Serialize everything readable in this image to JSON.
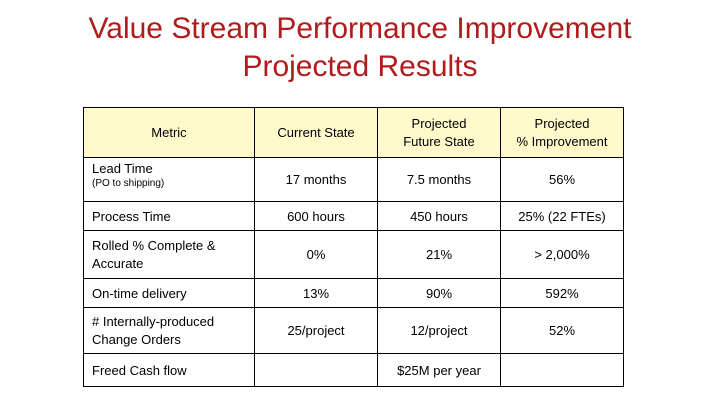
{
  "title": {
    "line1": "Value Stream Performance Improvement",
    "line2": "Projected Results"
  },
  "table": {
    "headers": [
      "Metric",
      "Current State",
      "Projected Future State",
      "Projected % Improvement"
    ],
    "header_lines": {
      "future_line1": "Projected",
      "future_line2": "Future State",
      "improvement_line1": "Projected",
      "improvement_line2": "% Improvement"
    },
    "rows": [
      {
        "metric": "Lead Time",
        "metric_sub": "(PO to shipping)",
        "current": "17 months",
        "future": "7.5 months",
        "improvement": "56%"
      },
      {
        "metric": "Process Time",
        "current": "600 hours",
        "future": "450 hours",
        "improvement": "25% (22 FTEs)"
      },
      {
        "metric_line1": "Rolled % Complete &",
        "metric_line2": "Accurate",
        "current": "0%",
        "future": "21%",
        "improvement": "> 2,000%"
      },
      {
        "metric": "On-time delivery",
        "current": "13%",
        "future": "90%",
        "improvement": "592%"
      },
      {
        "metric_line1": "# Internally-produced",
        "metric_line2": "Change Orders",
        "current": "25/project",
        "future": "12/project",
        "improvement": "52%"
      },
      {
        "metric": "Freed Cash flow",
        "current": "",
        "future": "$25M per year",
        "improvement": ""
      }
    ]
  },
  "colors": {
    "title": "#b01c1c",
    "header_bg": "#fff9cc"
  }
}
